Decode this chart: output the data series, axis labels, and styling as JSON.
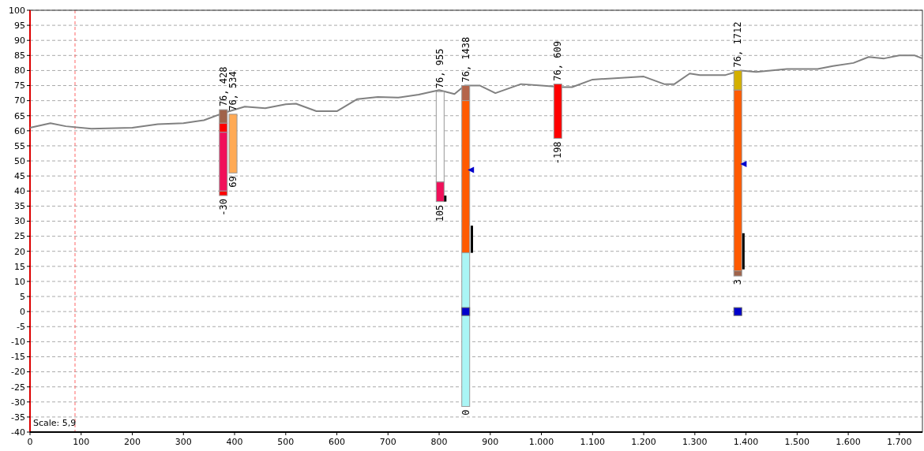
{
  "chart_data": {
    "type": "line",
    "xlim": [
      0,
      1745
    ],
    "ylim": [
      -40,
      100
    ],
    "xticks": [
      0,
      100,
      200,
      300,
      400,
      500,
      600,
      700,
      800,
      900,
      {
        "value": 1000,
        "label": "1.000"
      },
      {
        "value": 1100,
        "label": "1.100"
      },
      {
        "value": 1200,
        "label": "1.200"
      },
      {
        "value": 1300,
        "label": "1.300"
      },
      {
        "value": 1400,
        "label": "1.400"
      },
      {
        "value": 1500,
        "label": "1.500"
      },
      {
        "value": 1600,
        "label": "1.600"
      },
      {
        "value": 1700,
        "label": "1.700"
      }
    ],
    "yticks": [
      -40,
      -35,
      -30,
      -25,
      -20,
      -15,
      -10,
      -5,
      0,
      5,
      10,
      15,
      20,
      25,
      30,
      35,
      40,
      45,
      50,
      55,
      60,
      65,
      70,
      75,
      80,
      85,
      90,
      95,
      100
    ],
    "grid": "y",
    "series": [
      {
        "color": "#808080",
        "x": [
          0,
          40,
          70,
          120,
          200,
          250,
          300,
          340,
          380,
          420,
          460,
          500,
          520,
          560,
          600,
          640,
          680,
          720,
          760,
          800,
          830,
          850,
          880,
          910,
          960,
          1000,
          1040,
          1060,
          1100,
          1150,
          1200,
          1240,
          1260,
          1290,
          1310,
          1360,
          1390,
          1420,
          1480,
          1540,
          1570,
          1610,
          1640,
          1670,
          1700,
          1730,
          1745
        ],
        "values": [
          61,
          62.5,
          61.5,
          60.7,
          61,
          62.2,
          62.5,
          63.5,
          66,
          68,
          67.5,
          68.8,
          69,
          66.5,
          66.5,
          70.5,
          71.2,
          71,
          72,
          73.5,
          72.2,
          75,
          75,
          72.5,
          75.5,
          75,
          74.5,
          74.5,
          77,
          77.5,
          78,
          75.5,
          75.5,
          79,
          78.5,
          78.5,
          80,
          79.5,
          80.5,
          80.5,
          81.5,
          82.5,
          84.5,
          84,
          85,
          85,
          84
        ]
      },
      {
        "type": "bar",
        "x": [
          378,
          397,
          802,
          852,
          1032,
          1384
        ],
        "base": [
          62.5,
          46,
          43,
          70,
          57.5,
          73.5
        ],
        "values": [
          4.5,
          19.5,
          30,
          5,
          18,
          6.5
        ],
        "colors": [
          "#a0634a",
          "#ffaa55",
          "#ffffff",
          "#b5654a",
          "#ff0000",
          "#d4b000"
        ]
      },
      {
        "type": "bar",
        "x": [
          378,
          802,
          852,
          1384
        ],
        "base": [
          59.5,
          36.5,
          19.5,
          13.5
        ],
        "values": [
          3,
          6.5,
          50.5,
          60
        ],
        "colors": [
          "#ff0000",
          "#f0105a",
          "#ff5a00",
          "#ff5a00"
        ]
      },
      {
        "type": "bar",
        "x": [
          378,
          852,
          1384
        ],
        "base": [
          40,
          -31.5,
          11.8
        ],
        "values": [
          19.5,
          51,
          1.7
        ],
        "colors": [
          "#f0105a",
          "#aaf5f5",
          "#a0634a"
        ]
      },
      {
        "type": "bar",
        "x": [
          378
        ],
        "base": [
          38.5
        ],
        "values": [
          1.5
        ],
        "colors": [
          "#ff0000"
        ]
      },
      {
        "type": "bar",
        "color": "#000000",
        "x": [
          812,
          864,
          1395
        ],
        "base": [
          36.5,
          19.5,
          14
        ],
        "values": [
          2,
          9,
          12
        ]
      },
      {
        "type": "scatter",
        "color": "#0000cc",
        "marker": "triangle",
        "x": [
          862,
          1395
        ],
        "values": [
          47,
          49
        ]
      },
      {
        "type": "scatter",
        "color": "#0000cc",
        "marker": "square",
        "x": [
          852,
          1384
        ],
        "values": [
          0,
          0
        ]
      }
    ],
    "ref_lines": [
      {
        "axis": "x",
        "value": 88,
        "color": "#ff6666",
        "line_style": "dashed"
      }
    ],
    "annotations": [
      {
        "text": "76, 428",
        "x": 378,
        "y": 67
      },
      {
        "text": "-30",
        "x": 378,
        "y": 38.5
      },
      {
        "text": "76, 534",
        "x": 397,
        "y": 65.5
      },
      {
        "text": "69",
        "x": 397,
        "y": 46
      },
      {
        "text": "76, 955",
        "x": 802,
        "y": 73
      },
      {
        "text": "105",
        "x": 802,
        "y": 36.5
      },
      {
        "text": "76, 1438",
        "x": 852,
        "y": 75
      },
      {
        "text": "0",
        "x": 852,
        "y": -31.5
      },
      {
        "text": "76, 609",
        "x": 1032,
        "y": 75.5
      },
      {
        "text": "-198",
        "x": 1032,
        "y": 57.5
      },
      {
        "text": "76, 1712",
        "x": 1384,
        "y": 80
      },
      {
        "text": "3",
        "x": 1384,
        "y": 11.8
      },
      "Scale: 5,9"
    ]
  }
}
